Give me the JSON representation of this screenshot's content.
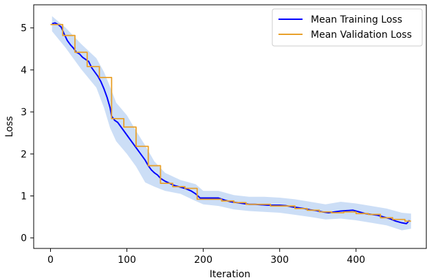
{
  "chart_data": {
    "type": "line",
    "title": "",
    "xlabel": "Iteration",
    "ylabel": "Loss",
    "xlim": [
      -22,
      492
    ],
    "ylim": [
      -0.25,
      5.55
    ],
    "xticks": [
      0,
      100,
      200,
      300,
      400
    ],
    "yticks": [
      0,
      1,
      2,
      3,
      4,
      5
    ],
    "legend_position": "top-right",
    "grid": false,
    "series": [
      {
        "name": "Mean Training Loss",
        "kind": "line",
        "color": "#0000ff",
        "points": [
          [
            2,
            5.1
          ],
          [
            6,
            5.12
          ],
          [
            10,
            5.08
          ],
          [
            14,
            5.02
          ],
          [
            18,
            4.85
          ],
          [
            22,
            4.7
          ],
          [
            26,
            4.6
          ],
          [
            30,
            4.52
          ],
          [
            34,
            4.42
          ],
          [
            38,
            4.38
          ],
          [
            42,
            4.3
          ],
          [
            46,
            4.25
          ],
          [
            50,
            4.2
          ],
          [
            54,
            4.05
          ],
          [
            58,
            3.95
          ],
          [
            62,
            3.85
          ],
          [
            66,
            3.72
          ],
          [
            70,
            3.55
          ],
          [
            74,
            3.35
          ],
          [
            78,
            3.1
          ],
          [
            80,
            2.9
          ],
          [
            84,
            2.8
          ],
          [
            88,
            2.75
          ],
          [
            92,
            2.65
          ],
          [
            96,
            2.55
          ],
          [
            100,
            2.45
          ],
          [
            104,
            2.35
          ],
          [
            108,
            2.25
          ],
          [
            112,
            2.15
          ],
          [
            116,
            2.05
          ],
          [
            120,
            1.95
          ],
          [
            124,
            1.85
          ],
          [
            128,
            1.72
          ],
          [
            132,
            1.62
          ],
          [
            136,
            1.55
          ],
          [
            140,
            1.5
          ],
          [
            144,
            1.42
          ],
          [
            150,
            1.35
          ],
          [
            156,
            1.3
          ],
          [
            162,
            1.25
          ],
          [
            168,
            1.22
          ],
          [
            176,
            1.18
          ],
          [
            184,
            1.12
          ],
          [
            190,
            1.05
          ],
          [
            196,
            0.95
          ],
          [
            204,
            0.95
          ],
          [
            212,
            0.95
          ],
          [
            220,
            0.95
          ],
          [
            228,
            0.9
          ],
          [
            236,
            0.86
          ],
          [
            244,
            0.84
          ],
          [
            252,
            0.82
          ],
          [
            260,
            0.8
          ],
          [
            268,
            0.8
          ],
          [
            276,
            0.79
          ],
          [
            284,
            0.78
          ],
          [
            292,
            0.78
          ],
          [
            300,
            0.78
          ],
          [
            308,
            0.77
          ],
          [
            316,
            0.74
          ],
          [
            324,
            0.72
          ],
          [
            332,
            0.7
          ],
          [
            340,
            0.67
          ],
          [
            348,
            0.65
          ],
          [
            356,
            0.62
          ],
          [
            364,
            0.6
          ],
          [
            372,
            0.62
          ],
          [
            380,
            0.64
          ],
          [
            388,
            0.65
          ],
          [
            396,
            0.66
          ],
          [
            404,
            0.62
          ],
          [
            412,
            0.58
          ],
          [
            420,
            0.56
          ],
          [
            428,
            0.54
          ],
          [
            436,
            0.5
          ],
          [
            444,
            0.46
          ],
          [
            452,
            0.4
          ],
          [
            460,
            0.36
          ],
          [
            466,
            0.34
          ],
          [
            470,
            0.42
          ]
        ]
      },
      {
        "name": "Mean Validation Loss",
        "kind": "step",
        "color": "#e8a02a",
        "points": [
          [
            0,
            5.08
          ],
          [
            16,
            4.82
          ],
          [
            32,
            4.42
          ],
          [
            48,
            4.08
          ],
          [
            64,
            3.82
          ],
          [
            80,
            2.84
          ],
          [
            96,
            2.64
          ],
          [
            112,
            2.18
          ],
          [
            128,
            1.72
          ],
          [
            144,
            1.3
          ],
          [
            160,
            1.22
          ],
          [
            176,
            1.18
          ],
          [
            192,
            0.92
          ],
          [
            208,
            0.92
          ],
          [
            224,
            0.88
          ],
          [
            240,
            0.84
          ],
          [
            256,
            0.8
          ],
          [
            272,
            0.8
          ],
          [
            288,
            0.76
          ],
          [
            304,
            0.76
          ],
          [
            320,
            0.7
          ],
          [
            336,
            0.66
          ],
          [
            352,
            0.62
          ],
          [
            368,
            0.6
          ],
          [
            384,
            0.62
          ],
          [
            400,
            0.58
          ],
          [
            416,
            0.56
          ],
          [
            432,
            0.48
          ],
          [
            448,
            0.44
          ],
          [
            464,
            0.4
          ],
          [
            472,
            0.4
          ]
        ]
      }
    ],
    "band": {
      "color": "#aac8f0",
      "upper": [
        [
          2,
          5.28
        ],
        [
          20,
          5.0
        ],
        [
          40,
          4.62
        ],
        [
          60,
          4.28
        ],
        [
          70,
          3.95
        ],
        [
          78,
          3.6
        ],
        [
          86,
          3.22
        ],
        [
          100,
          2.92
        ],
        [
          112,
          2.55
        ],
        [
          124,
          2.2
        ],
        [
          136,
          1.82
        ],
        [
          150,
          1.55
        ],
        [
          170,
          1.38
        ],
        [
          190,
          1.28
        ],
        [
          200,
          1.12
        ],
        [
          220,
          1.12
        ],
        [
          240,
          1.02
        ],
        [
          260,
          0.98
        ],
        [
          280,
          0.98
        ],
        [
          300,
          0.96
        ],
        [
          320,
          0.92
        ],
        [
          340,
          0.86
        ],
        [
          360,
          0.8
        ],
        [
          380,
          0.86
        ],
        [
          400,
          0.82
        ],
        [
          420,
          0.76
        ],
        [
          440,
          0.7
        ],
        [
          460,
          0.6
        ],
        [
          472,
          0.58
        ]
      ],
      "lower": [
        [
          2,
          4.92
        ],
        [
          20,
          4.52
        ],
        [
          40,
          4.02
        ],
        [
          60,
          3.58
        ],
        [
          70,
          3.1
        ],
        [
          78,
          2.62
        ],
        [
          86,
          2.3
        ],
        [
          100,
          2.0
        ],
        [
          112,
          1.7
        ],
        [
          124,
          1.32
        ],
        [
          136,
          1.22
        ],
        [
          150,
          1.12
        ],
        [
          170,
          1.05
        ],
        [
          190,
          0.88
        ],
        [
          200,
          0.8
        ],
        [
          220,
          0.76
        ],
        [
          240,
          0.68
        ],
        [
          260,
          0.64
        ],
        [
          280,
          0.62
        ],
        [
          300,
          0.6
        ],
        [
          320,
          0.55
        ],
        [
          340,
          0.5
        ],
        [
          360,
          0.44
        ],
        [
          380,
          0.46
        ],
        [
          400,
          0.42
        ],
        [
          420,
          0.36
        ],
        [
          440,
          0.3
        ],
        [
          460,
          0.18
        ],
        [
          472,
          0.22
        ]
      ]
    }
  }
}
